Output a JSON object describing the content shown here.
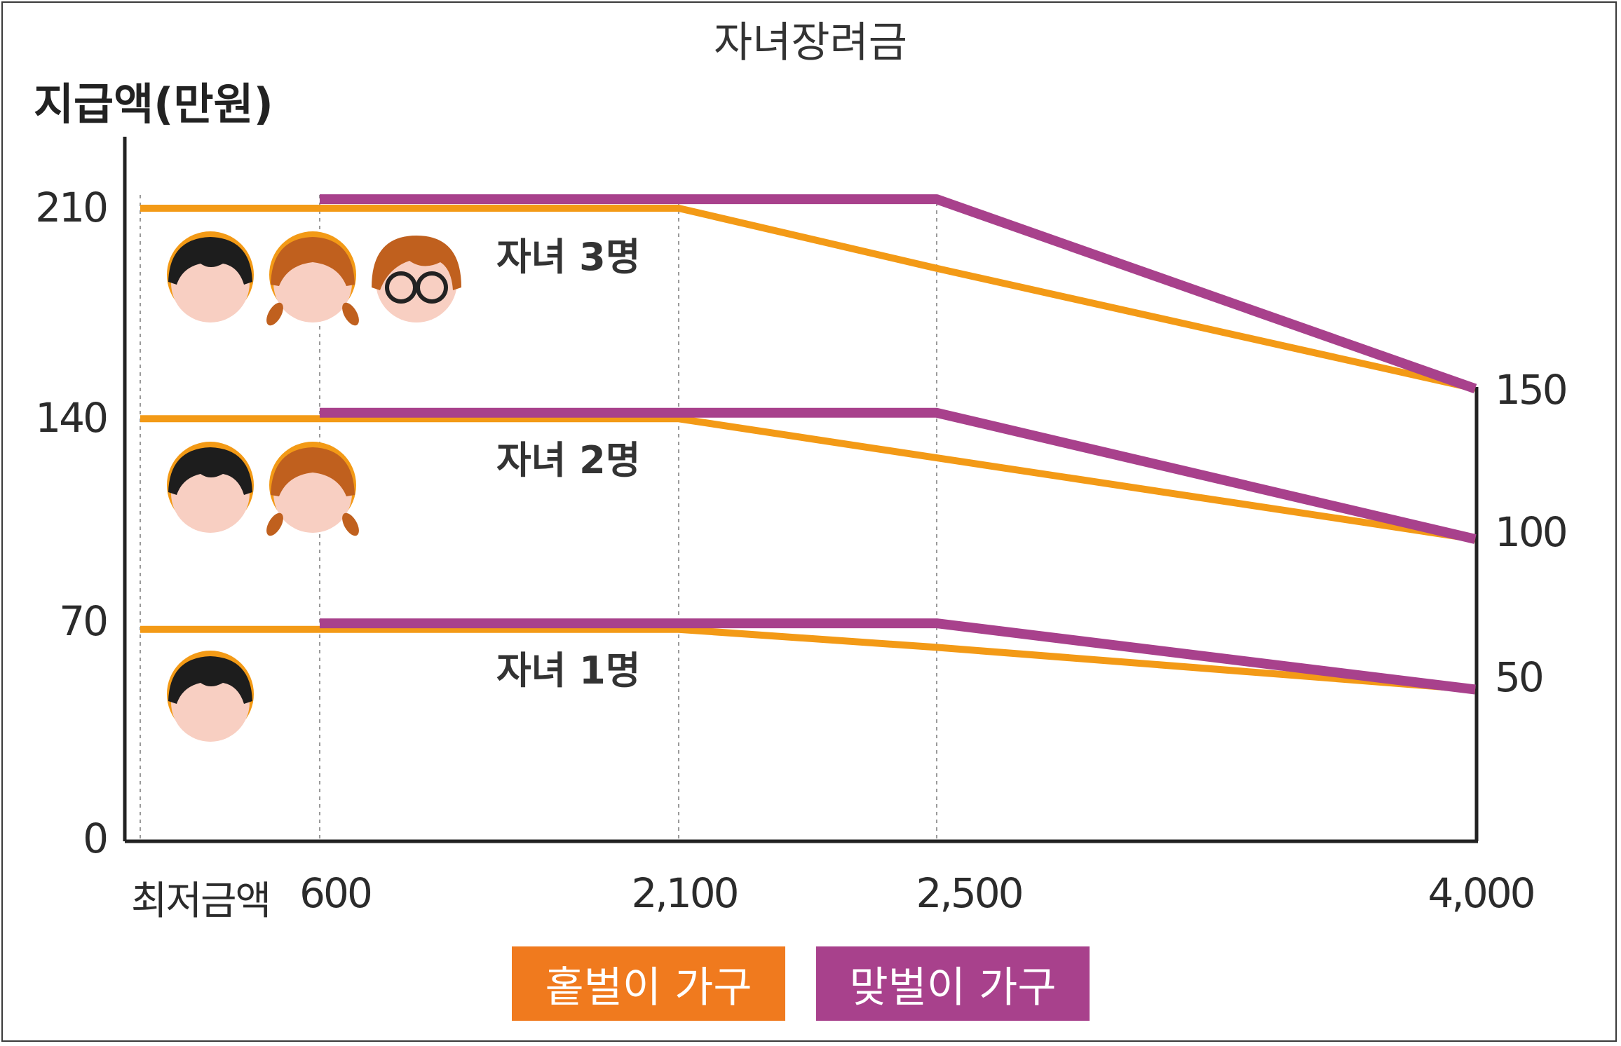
{
  "chart_data": {
    "type": "line",
    "title": "자녀장려금",
    "ylabel": "지급액(만원)",
    "y_ticks_left": [
      "210",
      "140",
      "70",
      "0"
    ],
    "y_ticks_right": [
      "150",
      "100",
      "50"
    ],
    "x_ticks": [
      "최저금액",
      "600",
      "2,100",
      "2,500",
      "4,000"
    ],
    "x": [
      0,
      600,
      2100,
      2500,
      4000
    ],
    "groups": [
      {
        "label": "자녀 3명",
        "series": [
          {
            "name": "홑벌이 가구",
            "values": [
              210,
              210,
              210,
              190,
              150
            ]
          },
          {
            "name": "맞벌이 가구",
            "values": [
              null,
              213,
              213,
              213,
              150
            ]
          }
        ]
      },
      {
        "label": "자녀 2명",
        "series": [
          {
            "name": "홑벌이 가구",
            "values": [
              140,
              140,
              140,
              127,
              100
            ]
          },
          {
            "name": "맞벌이 가구",
            "values": [
              null,
              142,
              142,
              142,
              100
            ]
          }
        ]
      },
      {
        "label": "자녀 1명",
        "series": [
          {
            "name": "홑벌이 가구",
            "values": [
              70,
              70,
              70,
              64,
              50
            ]
          },
          {
            "name": "맞벌이 가구",
            "values": [
              null,
              72,
              72,
              72,
              50
            ]
          }
        ]
      }
    ],
    "legend": [
      {
        "name": "홑벌이 가구",
        "color": "#f07a1e"
      },
      {
        "name": "맞벌이 가구",
        "color": "#a8418c"
      }
    ],
    "line_colors": {
      "single": "#f39a16",
      "dual": "#a8418c"
    }
  }
}
